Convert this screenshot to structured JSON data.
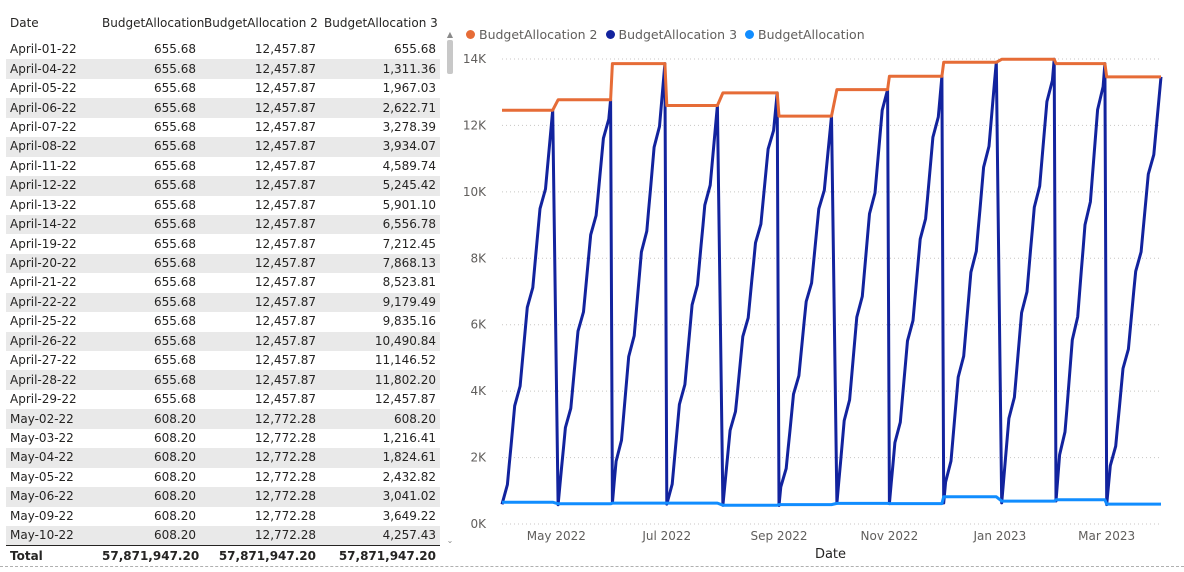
{
  "table": {
    "columns": [
      "Date",
      "BudgetAllocation",
      "BudgetAllocation 2",
      "BudgetAllocation 3"
    ],
    "rows": [
      [
        "April-01-22",
        "655.68",
        "12,457.87",
        "655.68"
      ],
      [
        "April-04-22",
        "655.68",
        "12,457.87",
        "1,311.36"
      ],
      [
        "April-05-22",
        "655.68",
        "12,457.87",
        "1,967.03"
      ],
      [
        "April-06-22",
        "655.68",
        "12,457.87",
        "2,622.71"
      ],
      [
        "April-07-22",
        "655.68",
        "12,457.87",
        "3,278.39"
      ],
      [
        "April-08-22",
        "655.68",
        "12,457.87",
        "3,934.07"
      ],
      [
        "April-11-22",
        "655.68",
        "12,457.87",
        "4,589.74"
      ],
      [
        "April-12-22",
        "655.68",
        "12,457.87",
        "5,245.42"
      ],
      [
        "April-13-22",
        "655.68",
        "12,457.87",
        "5,901.10"
      ],
      [
        "April-14-22",
        "655.68",
        "12,457.87",
        "6,556.78"
      ],
      [
        "April-19-22",
        "655.68",
        "12,457.87",
        "7,212.45"
      ],
      [
        "April-20-22",
        "655.68",
        "12,457.87",
        "7,868.13"
      ],
      [
        "April-21-22",
        "655.68",
        "12,457.87",
        "8,523.81"
      ],
      [
        "April-22-22",
        "655.68",
        "12,457.87",
        "9,179.49"
      ],
      [
        "April-25-22",
        "655.68",
        "12,457.87",
        "9,835.16"
      ],
      [
        "April-26-22",
        "655.68",
        "12,457.87",
        "10,490.84"
      ],
      [
        "April-27-22",
        "655.68",
        "12,457.87",
        "11,146.52"
      ],
      [
        "April-28-22",
        "655.68",
        "12,457.87",
        "11,802.20"
      ],
      [
        "April-29-22",
        "655.68",
        "12,457.87",
        "12,457.87"
      ],
      [
        "May-02-22",
        "608.20",
        "12,772.28",
        "608.20"
      ],
      [
        "May-03-22",
        "608.20",
        "12,772.28",
        "1,216.41"
      ],
      [
        "May-04-22",
        "608.20",
        "12,772.28",
        "1,824.61"
      ],
      [
        "May-05-22",
        "608.20",
        "12,772.28",
        "2,432.82"
      ],
      [
        "May-06-22",
        "608.20",
        "12,772.28",
        "3,041.02"
      ],
      [
        "May-09-22",
        "608.20",
        "12,772.28",
        "3,649.22"
      ],
      [
        "May-10-22",
        "608.20",
        "12,772.28",
        "4,257.43"
      ]
    ],
    "total_label": "Total",
    "totals": [
      "57,871,947.20",
      "57,871,947.20",
      "57,871,947.20"
    ]
  },
  "scroll_icons": {
    "up": "scroll-up-arrow",
    "down": "scroll-down-arrow"
  },
  "chart_data": {
    "type": "line",
    "xlabel": "Date",
    "ylabel": "",
    "ylim": [
      0,
      14000
    ],
    "yticks": [
      0,
      2000,
      4000,
      6000,
      8000,
      10000,
      12000,
      14000
    ],
    "ytick_labels": [
      "0K",
      "2K",
      "4K",
      "6K",
      "8K",
      "10K",
      "12K",
      "14K"
    ],
    "xlim": [
      "2022-04-01",
      "2023-03-31"
    ],
    "xticks": [
      "2022-05-01",
      "2022-07-01",
      "2022-09-01",
      "2022-11-01",
      "2023-01-01",
      "2023-03-01"
    ],
    "xtick_labels": [
      "May 2022",
      "Jul 2022",
      "Sep 2022",
      "Nov 2022",
      "Jan 2023",
      "Mar 2023"
    ],
    "grid": true,
    "legend_position": "top-left",
    "legend_order": [
      "BudgetAllocation 2",
      "BudgetAllocation 3",
      "BudgetAllocation"
    ],
    "colors": {
      "BudgetAllocation 2": "#e66c37",
      "BudgetAllocation 3": "#12239e",
      "BudgetAllocation": "#118dff"
    },
    "monthly": [
      {
        "month": "2022-04",
        "start": "2022-04-01",
        "end": "2022-04-29",
        "allocation": 655.68,
        "total": 12457.87
      },
      {
        "month": "2022-05",
        "start": "2022-05-02",
        "end": "2022-05-31",
        "allocation": 608.2,
        "total": 12772.28
      },
      {
        "month": "2022-06",
        "start": "2022-06-01",
        "end": "2022-06-30",
        "allocation": 630.0,
        "total": 13860.0
      },
      {
        "month": "2022-07",
        "start": "2022-07-01",
        "end": "2022-07-29",
        "allocation": 630.0,
        "total": 12600.0
      },
      {
        "month": "2022-08",
        "start": "2022-08-01",
        "end": "2022-08-31",
        "allocation": 565.0,
        "total": 12980.0
      },
      {
        "month": "2022-09",
        "start": "2022-09-01",
        "end": "2022-09-30",
        "allocation": 585.0,
        "total": 12280.0
      },
      {
        "month": "2022-10",
        "start": "2022-10-03",
        "end": "2022-10-31",
        "allocation": 620.0,
        "total": 13080.0
      },
      {
        "month": "2022-11",
        "start": "2022-11-01",
        "end": "2022-11-30",
        "allocation": 615.0,
        "total": 13480.0
      },
      {
        "month": "2022-12",
        "start": "2022-12-01",
        "end": "2022-12-30",
        "allocation": 820.0,
        "total": 13900.0
      },
      {
        "month": "2023-01",
        "start": "2023-01-02",
        "end": "2023-01-31",
        "allocation": 690.0,
        "total": 13990.0
      },
      {
        "month": "2023-02",
        "start": "2023-02-01",
        "end": "2023-02-28",
        "allocation": 730.0,
        "total": 13860.0
      },
      {
        "month": "2023-03",
        "start": "2023-03-01",
        "end": "2023-03-31",
        "allocation": 600.0,
        "total": 13460.0
      }
    ]
  }
}
